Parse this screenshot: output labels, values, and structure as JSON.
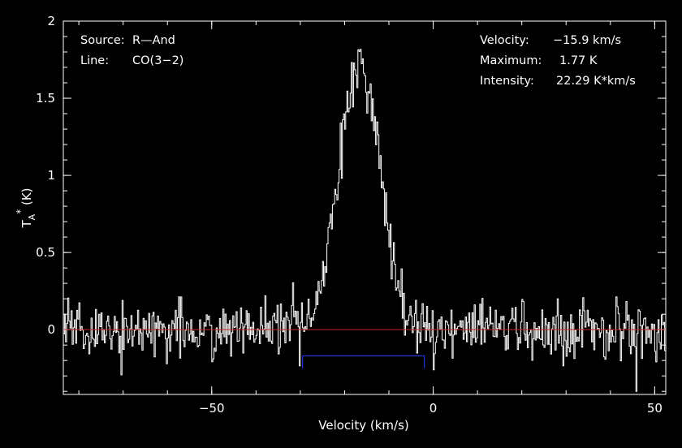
{
  "chart_data": {
    "type": "line",
    "xlabel": "Velocity (km/s)",
    "ylabel_main": "T",
    "ylabel_sub": "A",
    "ylabel_sup": "*",
    "ylabel_unit": " (K)",
    "xlim": [
      -83.5,
      52.5
    ],
    "ylim": [
      -0.42,
      2.0
    ],
    "x_ticks": [
      -50,
      0,
      50
    ],
    "x_tick_labels": [
      "−50",
      "0",
      "50"
    ],
    "y_ticks": [
      0,
      0.5,
      1,
      1.5,
      2
    ],
    "y_tick_labels": [
      "0",
      "0.5",
      "1",
      "1.5",
      "2"
    ],
    "x_minor_step": 10,
    "y_minor_step": 0.1,
    "grid": false,
    "colors": {
      "background": "#000000",
      "axes": "#ffffff",
      "spectrum": "#ffffff",
      "baseline": "#cc2222",
      "window": "#2233dd"
    },
    "baseline": {
      "y": 0.0,
      "x": [
        -83.5,
        52.5
      ]
    },
    "integration_window": {
      "x": [
        -29.5,
        -2.0
      ],
      "y_top": -0.17,
      "y_bottom": -0.25
    },
    "series": [
      {
        "style": "histogram",
        "x_start": -83.5,
        "x_step": 0.25,
        "profile": {
          "shape": "gaussian",
          "peak_velocity": -16.5,
          "peak_height": 1.74,
          "sigma": 4.6,
          "noise_rms": 0.09,
          "seed": 7
        }
      }
    ],
    "annotations": {
      "source_key": "Source:",
      "source_value": "R—And",
      "line_key": "Line:",
      "line_value": "CO(3−2)",
      "velocity_key": "Velocity:",
      "velocity_value": "−15.9 km/s",
      "maximum_key": "Maximum:",
      "maximum_value": "1.77 K",
      "intensity_key": "Intensity:",
      "intensity_value": "22.29 K*km/s"
    }
  }
}
